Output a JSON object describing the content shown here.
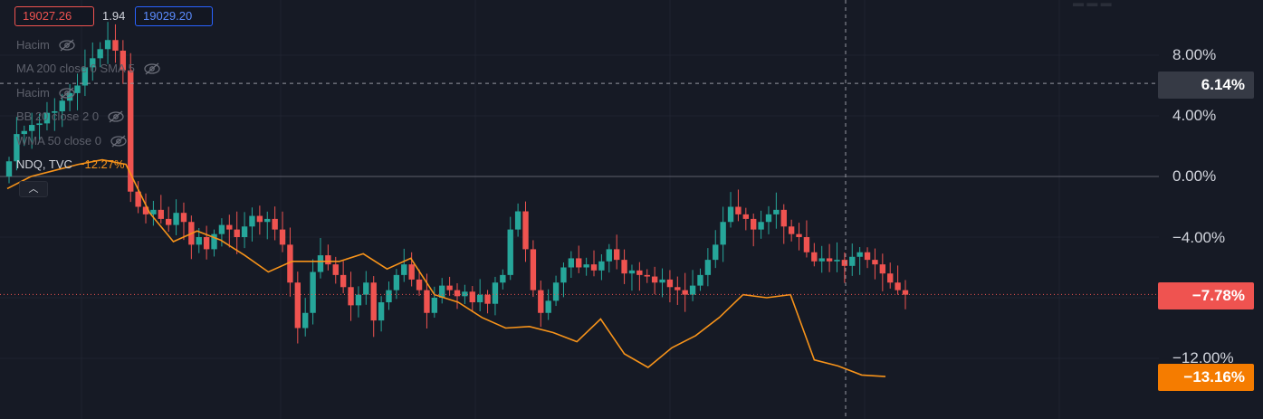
{
  "quote": {
    "bid": "19027.26",
    "spread": "1.94",
    "ask": "19029.20"
  },
  "legend": {
    "rows": [
      {
        "label": "Hacim",
        "icon": "eye-off-icon"
      },
      {
        "label": "MA 200 close 0 SMA 5",
        "icon": "eye-off-icon"
      },
      {
        "label": "Hacim",
        "icon": "eye-off-icon"
      },
      {
        "label": "BB 20 close 2 0",
        "icon": "eye-off-icon"
      },
      {
        "label": "WMA 50 close 0",
        "icon": "eye-off-icon"
      }
    ],
    "compare_symbol": "NDQ, TVC",
    "compare_change": "−12.27%",
    "collapse_icon": "chevron-up-icon"
  },
  "axis": {
    "ticks": [
      "8.00%",
      "4.00%",
      "0.00%",
      "−4.00%",
      "−12.00%"
    ],
    "crosshair_value": "6.14%",
    "last_value": "−7.78%",
    "compare_value": "−13.16%"
  },
  "colors": {
    "background": "#161a25",
    "up": "#26a69a",
    "down": "#ef5350",
    "compare_line": "#f7931a",
    "crosshair_tag": "#363a45"
  },
  "chart_data": {
    "type": "line",
    "y_unit": "%",
    "ylim": [
      -16,
      10.5
    ],
    "series": [
      {
        "name": "NDQ, TVC",
        "values": [
          -0.8,
          0.0,
          0.4,
          0.8,
          1.1,
          0.8,
          -2.4,
          -4.3,
          -3.6,
          -4.2,
          -5.2,
          -6.3,
          -5.6,
          -5.6,
          -5.6,
          -5.1,
          -6.1,
          -5.4,
          -7.8,
          -8.3,
          -9.3,
          -10.0,
          -9.9,
          -10.3,
          -10.9,
          -9.4,
          -11.7,
          -12.6,
          -11.3,
          -10.5,
          -9.3,
          -7.8,
          -8.0,
          -7.8,
          -12.1,
          -12.5,
          -13.1,
          -13.2
        ]
      }
    ],
    "candles_pct": [
      1.0,
      2.8,
      3.0,
      3.4,
      3.5,
      4.2,
      4.3,
      5.0,
      5.5,
      6.0,
      7.2,
      7.8,
      8.4,
      9.0,
      8.3,
      7.0,
      -1.0,
      -2.0,
      -2.5,
      -2.2,
      -2.8,
      -3.2,
      -2.4,
      -3.0,
      -4.5,
      -4.0,
      -4.8,
      -3.8,
      -3.2,
      -3.5,
      -4.0,
      -3.3,
      -2.6,
      -3.0,
      -2.8,
      -3.5,
      -4.5,
      -7.0,
      -10.0,
      -9.0,
      -6.3,
      -5.2,
      -5.8,
      -6.5,
      -7.3,
      -8.5,
      -7.8,
      -7.0,
      -9.5,
      -8.3,
      -7.5,
      -6.5,
      -5.8,
      -6.8,
      -7.5,
      -9.0,
      -8.0,
      -7.2,
      -7.5,
      -7.9,
      -7.6,
      -8.3,
      -7.8,
      -8.4,
      -7.0,
      -6.5,
      -3.5,
      -2.3,
      -4.8,
      -7.5,
      -9.0,
      -8.2,
      -7.0,
      -6.0,
      -5.4,
      -6.0,
      -5.8,
      -6.2,
      -5.6,
      -4.8,
      -5.5,
      -6.4,
      -6.2,
      -6.5,
      -6.6,
      -7.0,
      -6.8,
      -7.3,
      -7.5,
      -7.8,
      -7.2,
      -6.5,
      -5.5,
      -4.5,
      -3.0,
      -2.0,
      -2.5,
      -2.8,
      -3.5,
      -3.0,
      -2.5,
      -2.2,
      -3.3,
      -3.8,
      -4.0,
      -5.0,
      -5.6,
      -5.4,
      -5.6,
      -5.5,
      -5.9,
      -5.3,
      -5.0,
      -5.5,
      -5.8,
      -6.4,
      -7.0,
      -7.5,
      -7.8
    ]
  }
}
